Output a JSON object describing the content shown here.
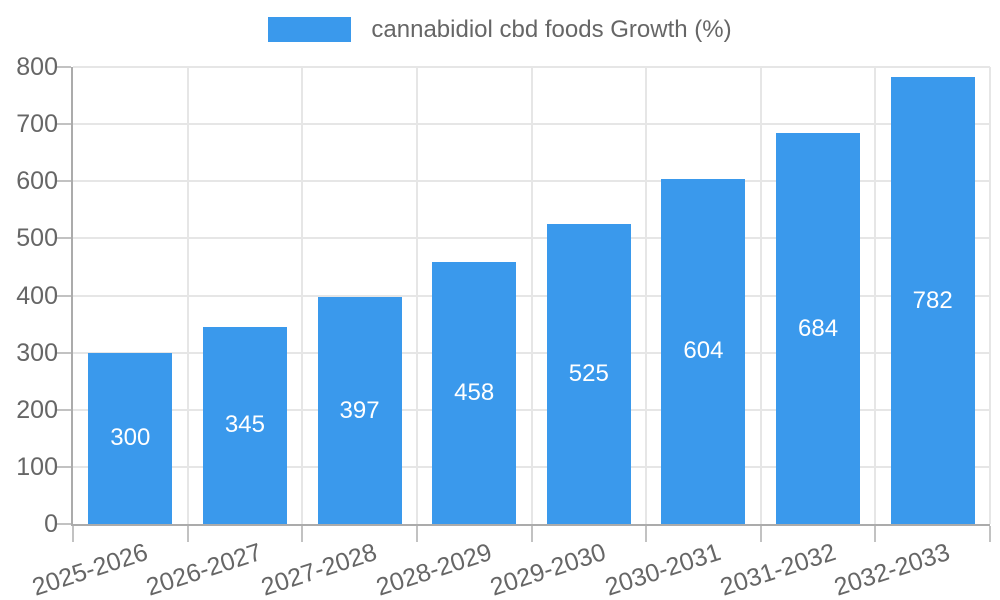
{
  "chart_data": {
    "type": "bar",
    "title": "",
    "series_name": "cannabidiol cbd foods Growth (%)",
    "categories": [
      "2025-2026",
      "2026-2027",
      "2027-2028",
      "2028-2029",
      "2029-2030",
      "2030-2031",
      "2031-2032",
      "2032-2033"
    ],
    "values": [
      300,
      345,
      397,
      458,
      525,
      604,
      684,
      782
    ],
    "xlabel": "",
    "ylabel": "",
    "ylim": [
      0,
      800
    ],
    "yticks": [
      0,
      100,
      200,
      300,
      400,
      500,
      600,
      700,
      800
    ],
    "grid": true,
    "legend_position": "top-center",
    "value_labels": "centered-inside-bars",
    "x_label_rotation_deg": -18,
    "colors": {
      "bar": "#3A99EC",
      "grid": "#E6E6E6",
      "axis": "#ABABAB",
      "tick": "#C2C2C2",
      "tick_text": "#666666",
      "legend_text": "#666666",
      "value_label": "#FFFFFF",
      "background": "#FFFFFF"
    }
  }
}
